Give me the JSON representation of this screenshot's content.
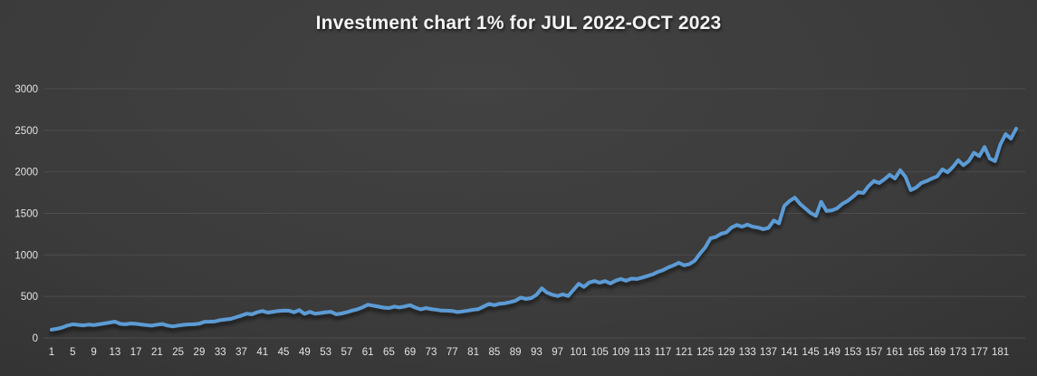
{
  "title": "Investment chart 1% for JUL 2022-OCT 2023",
  "colors": {
    "line": "#5b9bd5",
    "grid": "#4d4d4d",
    "tick_text": "#e4e4e4",
    "title_text": "#f4f4f4"
  },
  "chart_data": {
    "type": "line",
    "title": "Investment chart 1% for JUL 2022-OCT 2023",
    "xlabel": "",
    "ylabel": "",
    "ylim": [
      0,
      3000
    ],
    "y_ticks": [
      0,
      500,
      1000,
      1500,
      2000,
      2500,
      3000
    ],
    "x_tick_labels": [
      "1",
      "5",
      "9",
      "13",
      "17",
      "21",
      "25",
      "29",
      "33",
      "37",
      "41",
      "45",
      "49",
      "53",
      "57",
      "61",
      "65",
      "69",
      "73",
      "77",
      "81",
      "85",
      "89",
      "93",
      "97",
      "101",
      "105",
      "109",
      "113",
      "117",
      "121",
      "125",
      "129",
      "133",
      "137",
      "141",
      "145",
      "149",
      "153",
      "157",
      "161",
      "165",
      "169",
      "173",
      "177",
      "181"
    ],
    "grid": "horizontal",
    "legend": "none",
    "values": [
      100,
      110,
      125,
      150,
      165,
      158,
      152,
      160,
      155,
      165,
      175,
      185,
      196,
      170,
      165,
      175,
      170,
      163,
      155,
      148,
      160,
      168,
      150,
      140,
      150,
      158,
      164,
      165,
      172,
      195,
      196,
      200,
      215,
      222,
      230,
      250,
      270,
      292,
      285,
      310,
      325,
      305,
      315,
      325,
      330,
      328,
      310,
      336,
      290,
      315,
      292,
      300,
      310,
      315,
      285,
      295,
      310,
      330,
      345,
      370,
      400,
      390,
      378,
      365,
      360,
      378,
      368,
      380,
      395,
      365,
      345,
      360,
      348,
      340,
      330,
      328,
      325,
      312,
      320,
      330,
      340,
      348,
      380,
      410,
      395,
      412,
      418,
      432,
      448,
      487,
      470,
      480,
      520,
      598,
      545,
      520,
      505,
      525,
      505,
      578,
      652,
      615,
      668,
      685,
      665,
      685,
      657,
      690,
      710,
      690,
      715,
      710,
      726,
      745,
      765,
      795,
      817,
      850,
      875,
      905,
      875,
      890,
      930,
      1015,
      1090,
      1200,
      1215,
      1255,
      1270,
      1330,
      1360,
      1340,
      1365,
      1340,
      1330,
      1310,
      1325,
      1415,
      1380,
      1590,
      1650,
      1690,
      1615,
      1560,
      1505,
      1470,
      1640,
      1530,
      1535,
      1560,
      1615,
      1650,
      1700,
      1755,
      1745,
      1830,
      1890,
      1865,
      1910,
      1965,
      1920,
      2020,
      1940,
      1780,
      1810,
      1865,
      1890,
      1920,
      1945,
      2030,
      1995,
      2060,
      2140,
      2080,
      2130,
      2230,
      2190,
      2300,
      2160,
      2130,
      2330,
      2455,
      2400,
      2520
    ]
  }
}
